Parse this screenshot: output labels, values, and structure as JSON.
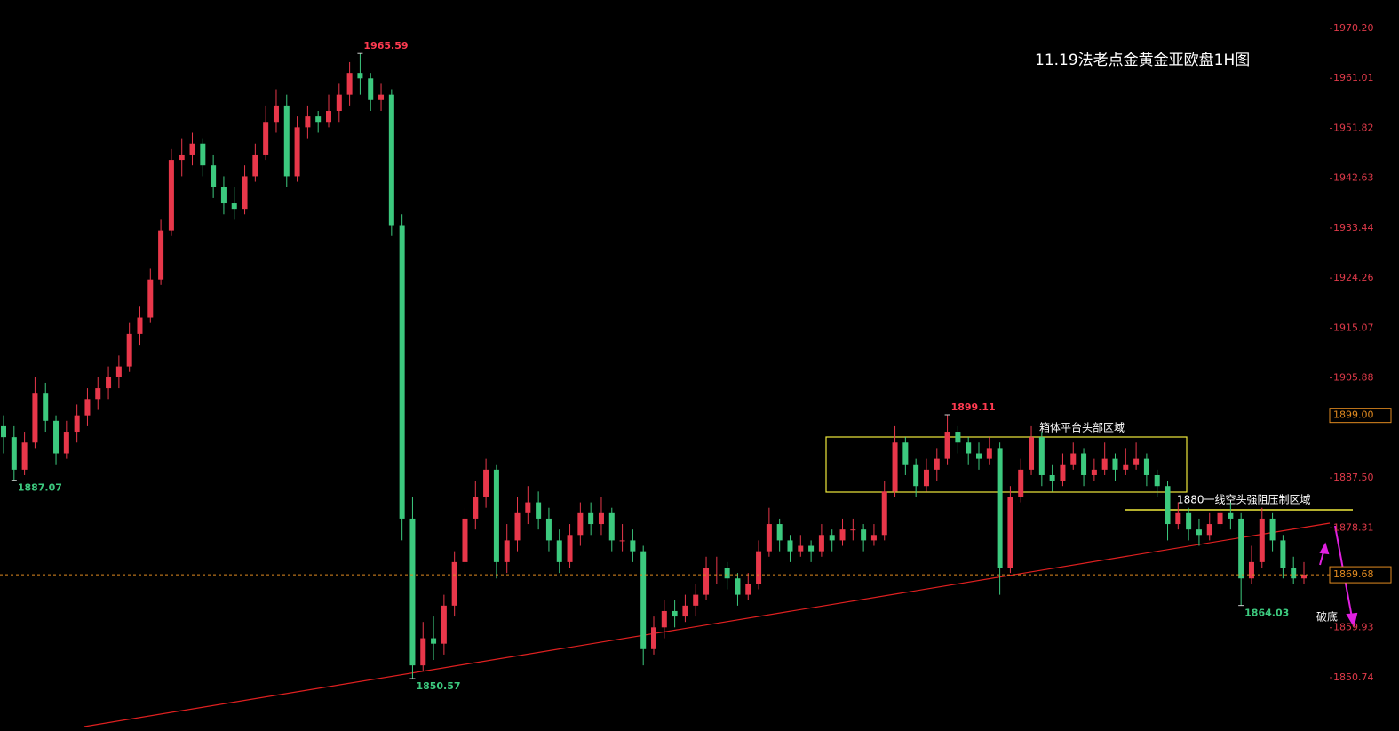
{
  "chart_data": {
    "type": "candlestick",
    "title": "11.19法老点金黄金亚欧盘1H图",
    "ylim": [
      1840.93,
      1975.43
    ],
    "yticks": [
      {
        "value": 1970.2,
        "label": "1970.20"
      },
      1961.01,
      1951.82,
      1942.63,
      1933.44,
      1924.26,
      1915.07,
      1905.88,
      {
        "value": 1887.5,
        "label": "1887.50"
      },
      1878.31,
      1859.93,
      1850.74
    ],
    "up_color": "#e8374a",
    "down_color": "#3cc97e",
    "price_marker": {
      "value": 1899,
      "label": "1899.00"
    },
    "current_price": 1869.68,
    "box_label": "箱体平台头部区域",
    "line_label": "1880一线空头强阻压制区域",
    "breakdown_label": "破底",
    "candles": [
      [
        1897,
        1899,
        1892,
        1895
      ],
      [
        1895,
        1897,
        1887.07,
        1889
      ],
      [
        1889,
        1896,
        1888,
        1894
      ],
      [
        1894,
        1906,
        1893,
        1903
      ],
      [
        1903,
        1905,
        1896,
        1898
      ],
      [
        1898,
        1899,
        1890,
        1892
      ],
      [
        1892,
        1898,
        1891,
        1896
      ],
      [
        1896,
        1901,
        1894,
        1899
      ],
      [
        1899,
        1904,
        1897,
        1902
      ],
      [
        1902,
        1906,
        1900,
        1904
      ],
      [
        1904,
        1908,
        1902,
        1906
      ],
      [
        1906,
        1910,
        1904,
        1908
      ],
      [
        1908,
        1916,
        1907,
        1914
      ],
      [
        1914,
        1919,
        1912,
        1917
      ],
      [
        1917,
        1926,
        1916,
        1924
      ],
      [
        1924,
        1935,
        1923,
        1933
      ],
      [
        1933,
        1948,
        1932,
        1946
      ],
      [
        1946,
        1950,
        1943,
        1947
      ],
      [
        1947,
        1951,
        1945,
        1949
      ],
      [
        1949,
        1950,
        1943,
        1945
      ],
      [
        1945,
        1947,
        1939,
        1941
      ],
      [
        1941,
        1943,
        1936,
        1938
      ],
      [
        1938,
        1941,
        1935,
        1937
      ],
      [
        1937,
        1945,
        1936,
        1943
      ],
      [
        1943,
        1949,
        1942,
        1947
      ],
      [
        1947,
        1956,
        1946,
        1953
      ],
      [
        1953,
        1959,
        1951,
        1956
      ],
      [
        1956,
        1958,
        1941,
        1943
      ],
      [
        1943,
        1954,
        1942,
        1952
      ],
      [
        1952,
        1956,
        1950,
        1954
      ],
      [
        1954,
        1955,
        1951,
        1953
      ],
      [
        1953,
        1958,
        1952,
        1955
      ],
      [
        1955,
        1960,
        1953,
        1958
      ],
      [
        1958,
        1964,
        1956,
        1962
      ],
      [
        1962,
        1965.59,
        1958,
        1961
      ],
      [
        1961,
        1962,
        1955,
        1957
      ],
      [
        1957,
        1960,
        1955,
        1958
      ],
      [
        1958,
        1959,
        1932,
        1934
      ],
      [
        1934,
        1936,
        1876,
        1880
      ],
      [
        1880,
        1884,
        1850.57,
        1853
      ],
      [
        1853,
        1861,
        1852,
        1858
      ],
      [
        1858,
        1862,
        1854,
        1857
      ],
      [
        1857,
        1866,
        1855,
        1864
      ],
      [
        1864,
        1874,
        1862,
        1872
      ],
      [
        1872,
        1882,
        1870,
        1880
      ],
      [
        1880,
        1887,
        1878,
        1884
      ],
      [
        1884,
        1891,
        1882,
        1889
      ],
      [
        1889,
        1890,
        1869,
        1872
      ],
      [
        1872,
        1879,
        1870,
        1876
      ],
      [
        1876,
        1884,
        1874,
        1881
      ],
      [
        1881,
        1886,
        1879,
        1883
      ],
      [
        1883,
        1885,
        1878,
        1880
      ],
      [
        1880,
        1882,
        1874,
        1876
      ],
      [
        1876,
        1878,
        1870,
        1872
      ],
      [
        1872,
        1879,
        1871,
        1877
      ],
      [
        1877,
        1883,
        1875,
        1881
      ],
      [
        1881,
        1883,
        1877,
        1879
      ],
      [
        1879,
        1884,
        1877,
        1881
      ],
      [
        1881,
        1882,
        1874,
        1876
      ],
      [
        1876,
        1879,
        1874,
        1876
      ],
      [
        1876,
        1878,
        1872,
        1874
      ],
      [
        1874,
        1875,
        1853,
        1856
      ],
      [
        1856,
        1862,
        1855,
        1860
      ],
      [
        1860,
        1865,
        1858,
        1863
      ],
      [
        1863,
        1865,
        1860,
        1862
      ],
      [
        1862,
        1866,
        1861,
        1864
      ],
      [
        1864,
        1868,
        1862,
        1866
      ],
      [
        1866,
        1873,
        1865,
        1871
      ],
      [
        1871,
        1873,
        1868,
        1871
      ],
      [
        1871,
        1872,
        1867,
        1869
      ],
      [
        1869,
        1870,
        1864,
        1866
      ],
      [
        1866,
        1870,
        1865,
        1868
      ],
      [
        1868,
        1876,
        1867,
        1874
      ],
      [
        1874,
        1882,
        1873,
        1879
      ],
      [
        1879,
        1880,
        1874,
        1876
      ],
      [
        1876,
        1877,
        1872,
        1874
      ],
      [
        1874,
        1877,
        1873,
        1875
      ],
      [
        1875,
        1876,
        1872,
        1874
      ],
      [
        1874,
        1879,
        1873,
        1877
      ],
      [
        1877,
        1878,
        1874,
        1876
      ],
      [
        1876,
        1880,
        1875,
        1878
      ],
      [
        1878,
        1880,
        1876,
        1878
      ],
      [
        1878,
        1879,
        1874,
        1876
      ],
      [
        1876,
        1879,
        1875,
        1877
      ],
      [
        1877,
        1887,
        1876,
        1885
      ],
      [
        1885,
        1897,
        1884,
        1894
      ],
      [
        1894,
        1895,
        1888,
        1890
      ],
      [
        1890,
        1891,
        1884,
        1886
      ],
      [
        1886,
        1891,
        1885,
        1889
      ],
      [
        1889,
        1893,
        1887,
        1891
      ],
      [
        1891,
        1899.11,
        1890,
        1896
      ],
      [
        1896,
        1897,
        1892,
        1894
      ],
      [
        1894,
        1895,
        1890,
        1892
      ],
      [
        1892,
        1894,
        1889,
        1891
      ],
      [
        1891,
        1895,
        1890,
        1893
      ],
      [
        1893,
        1894,
        1866,
        1871
      ],
      [
        1871,
        1886,
        1870,
        1884
      ],
      [
        1884,
        1891,
        1883,
        1889
      ],
      [
        1889,
        1897,
        1888,
        1895
      ],
      [
        1895,
        1896,
        1886,
        1888
      ],
      [
        1888,
        1890,
        1885,
        1887
      ],
      [
        1887,
        1892,
        1886,
        1890
      ],
      [
        1890,
        1894,
        1889,
        1892
      ],
      [
        1892,
        1893,
        1886,
        1888
      ],
      [
        1888,
        1891,
        1887,
        1889
      ],
      [
        1889,
        1894,
        1888,
        1891
      ],
      [
        1891,
        1892,
        1887,
        1889
      ],
      [
        1889,
        1893,
        1888,
        1890
      ],
      [
        1890,
        1894,
        1889,
        1891
      ],
      [
        1891,
        1892,
        1886,
        1888
      ],
      [
        1888,
        1889,
        1884,
        1886
      ],
      [
        1886,
        1887,
        1876,
        1879
      ],
      [
        1879,
        1883,
        1878,
        1881
      ],
      [
        1881,
        1882,
        1876,
        1878
      ],
      [
        1878,
        1880,
        1875,
        1877
      ],
      [
        1877,
        1881,
        1876,
        1879
      ],
      [
        1879,
        1883,
        1878,
        1881
      ],
      [
        1881,
        1883,
        1878,
        1880
      ],
      [
        1880,
        1881,
        1864.03,
        1869
      ],
      [
        1869,
        1875,
        1868,
        1872
      ],
      [
        1872,
        1882,
        1871,
        1880
      ],
      [
        1880,
        1881,
        1874,
        1876
      ],
      [
        1876,
        1877,
        1869,
        1871
      ],
      [
        1871,
        1873,
        1868,
        1869
      ],
      [
        1869,
        1872,
        1868,
        1869.68
      ]
    ]
  }
}
